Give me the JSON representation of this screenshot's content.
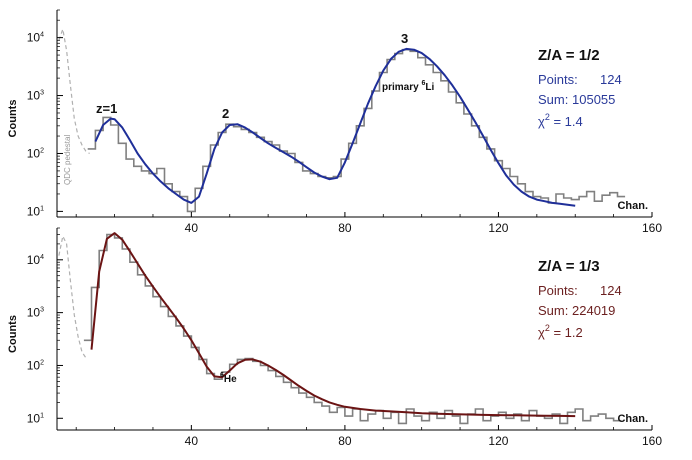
{
  "chart_data": [
    {
      "type": "line",
      "panel": "top",
      "title": "",
      "xlabel": "Chan.",
      "ylabel": "Counts",
      "xlim": [
        5,
        160
      ],
      "ylim": [
        8,
        30000
      ],
      "yscale": "log",
      "x_ticks": [
        40,
        80,
        120,
        160
      ],
      "y_ticks": [
        10,
        100,
        1000,
        10000
      ],
      "y_tick_base": "10",
      "y_tick_exponents": [
        "1",
        "2",
        "3",
        "4"
      ],
      "grid": false,
      "legend_box": {
        "title": "Z/A = 1/2",
        "points_label": "Points:",
        "points_value": "124",
        "sum_label": "Sum:",
        "sum_value": "105055",
        "chi_prefix": "χ",
        "chi_exp": "2",
        "chi_suffix": " = 1.4",
        "color": "#2a3a9a"
      },
      "annotations": [
        {
          "text": "z=1",
          "x": 19,
          "y": 440
        },
        {
          "text": "2",
          "x": 51,
          "y": 340
        },
        {
          "text": "3",
          "x": 96,
          "y": 7000
        },
        {
          "text": "primary ",
          "sup": "6",
          "suffix": "Li",
          "x": 99,
          "y": 1200
        },
        {
          "text": "QDC pedestal",
          "x": 12,
          "y": 130
        }
      ],
      "series": [
        {
          "name": "",
          "style": "pedestal-dashed",
          "color": "#b0b0b0",
          "x": [
            5.5,
            6.5,
            7.5,
            8.5,
            9.5,
            10.5,
            11.5,
            12.5,
            13.5
          ],
          "y": [
            9000,
            14000,
            6000,
            1500,
            400,
            200,
            140,
            110,
            100
          ]
        },
        {
          "name": "",
          "style": "histogram",
          "color": "#808080",
          "x": [
            14,
            16,
            18,
            20,
            22,
            24,
            26,
            28,
            30,
            32,
            34,
            36,
            38,
            40,
            42,
            44,
            46,
            48,
            50,
            52,
            54,
            56,
            58,
            60,
            62,
            64,
            66,
            68,
            70,
            72,
            74,
            76,
            78,
            80,
            82,
            84,
            86,
            88,
            90,
            92,
            94,
            96,
            98,
            100,
            102,
            104,
            106,
            108,
            110,
            112,
            114,
            116,
            118,
            120,
            122,
            124,
            126,
            128,
            130,
            132,
            134,
            136,
            138,
            140,
            142,
            144,
            146,
            148,
            150,
            152
          ],
          "y": [
            120,
            250,
            420,
            310,
            150,
            80,
            60,
            50,
            45,
            55,
            30,
            22,
            18,
            10,
            25,
            60,
            140,
            230,
            320,
            290,
            260,
            230,
            190,
            160,
            140,
            110,
            100,
            70,
            50,
            45,
            40,
            38,
            40,
            80,
            150,
            300,
            600,
            1200,
            2500,
            4200,
            5300,
            6200,
            5800,
            4500,
            3400,
            2500,
            1800,
            1150,
            750,
            480,
            300,
            190,
            120,
            75,
            55,
            40,
            30,
            22,
            18,
            17,
            14,
            20,
            17,
            16,
            18,
            22,
            15,
            19,
            21,
            18
          ]
        },
        {
          "name": "",
          "style": "fit",
          "color": "#1f2f99",
          "x": [
            15,
            17,
            19,
            20,
            22,
            24,
            26,
            28,
            30,
            32,
            34,
            36,
            38,
            40,
            42,
            44,
            46,
            48,
            50,
            52,
            54,
            56,
            58,
            60,
            62,
            64,
            66,
            68,
            70,
            72,
            74,
            76,
            78,
            80,
            82,
            84,
            86,
            88,
            90,
            92,
            94,
            96,
            98,
            100,
            102,
            104,
            106,
            108,
            110,
            112,
            114,
            116,
            118,
            120,
            122,
            124,
            126,
            128,
            130,
            132,
            134,
            136,
            138,
            140
          ],
          "y": [
            160,
            310,
            400,
            390,
            280,
            170,
            100,
            65,
            45,
            33,
            25,
            20,
            16,
            14,
            18,
            45,
            120,
            230,
            310,
            320,
            280,
            230,
            185,
            150,
            125,
            105,
            88,
            72,
            58,
            47,
            40,
            36,
            38,
            70,
            150,
            330,
            720,
            1450,
            2700,
            4300,
            5700,
            6400,
            6200,
            5400,
            4300,
            3200,
            2250,
            1500,
            950,
            580,
            345,
            200,
            115,
            68,
            42,
            29,
            22,
            18,
            16,
            15,
            14,
            13.5,
            13,
            12.5
          ]
        }
      ]
    },
    {
      "type": "line",
      "panel": "bottom",
      "title": "",
      "xlabel": "Chan.",
      "ylabel": "Counts",
      "xlim": [
        5,
        160
      ],
      "ylim": [
        6,
        40000
      ],
      "yscale": "log",
      "x_ticks": [
        40,
        80,
        120,
        160
      ],
      "y_ticks": [
        10,
        100,
        1000,
        10000
      ],
      "y_tick_base": "10",
      "y_tick_exponents": [
        "1",
        "2",
        "3",
        "4"
      ],
      "grid": false,
      "legend_box": {
        "title": "Z/A = 1/3",
        "points_label": "Points:",
        "points_value": "124",
        "sum_label": "Sum:",
        "sum_value": "224019",
        "chi_prefix": "χ",
        "chi_exp": "2",
        "chi_suffix": " = 1.2",
        "color": "#6b1f1f"
      },
      "annotations": [
        {
          "text": "",
          "sup": "6",
          "suffix": "He",
          "x": 55,
          "y": 45
        }
      ],
      "series": [
        {
          "name": "",
          "style": "pedestal-dashed",
          "color": "#b0b0b0",
          "x": [
            5.5,
            6.5,
            7.5,
            8.5,
            9.5,
            10.5,
            11.5,
            12.5
          ],
          "y": [
            12000,
            28000,
            20000,
            4000,
            900,
            350,
            180,
            140
          ]
        },
        {
          "name": "",
          "style": "histogram",
          "color": "#808080",
          "x": [
            13,
            15,
            17,
            19,
            21,
            23,
            25,
            27,
            29,
            31,
            33,
            35,
            37,
            39,
            41,
            43,
            45,
            47,
            49,
            51,
            53,
            55,
            57,
            59,
            61,
            63,
            65,
            67,
            69,
            71,
            73,
            75,
            77,
            79,
            81,
            83,
            85,
            87,
            89,
            91,
            93,
            95,
            97,
            99,
            101,
            103,
            105,
            107,
            109,
            111,
            113,
            115,
            117,
            119,
            121,
            123,
            125,
            127,
            129,
            131,
            133,
            135,
            137,
            139,
            141,
            143,
            145,
            147,
            149,
            151
          ],
          "y": [
            300,
            3000,
            15000,
            30000,
            26000,
            16000,
            9000,
            5200,
            3200,
            2000,
            1300,
            850,
            560,
            360,
            220,
            130,
            70,
            55,
            75,
            105,
            130,
            135,
            120,
            100,
            80,
            62,
            48,
            38,
            30,
            25,
            20,
            17,
            13,
            16,
            11,
            15,
            9,
            12,
            14,
            10,
            13,
            8,
            15,
            11,
            9,
            13,
            10,
            14,
            11,
            8,
            12,
            15,
            9,
            11,
            13,
            10,
            12,
            9,
            14,
            11,
            10,
            12,
            8,
            13,
            15,
            9,
            11,
            12,
            10,
            9
          ]
        },
        {
          "name": "",
          "style": "fit",
          "color": "#6b1414",
          "x": [
            14,
            16,
            18,
            20,
            22,
            24,
            26,
            28,
            30,
            32,
            34,
            36,
            38,
            40,
            42,
            44,
            46,
            48,
            50,
            52,
            54,
            56,
            58,
            60,
            62,
            64,
            66,
            68,
            70,
            72,
            74,
            76,
            78,
            80,
            84,
            88,
            92,
            96,
            100,
            104,
            108,
            112,
            116,
            120,
            124,
            128,
            132,
            136,
            140
          ],
          "y": [
            200,
            6000,
            25000,
            32000,
            24000,
            14500,
            8500,
            5000,
            3100,
            1950,
            1250,
            800,
            500,
            300,
            170,
            95,
            62,
            60,
            80,
            110,
            128,
            130,
            118,
            100,
            82,
            66,
            52,
            41,
            33,
            27,
            23,
            20,
            18,
            16.5,
            15,
            14,
            13.5,
            13,
            12.5,
            12.2,
            12,
            11.8,
            11.6,
            11.5,
            11.4,
            11.3,
            11.2,
            11.1,
            11
          ]
        }
      ]
    }
  ]
}
